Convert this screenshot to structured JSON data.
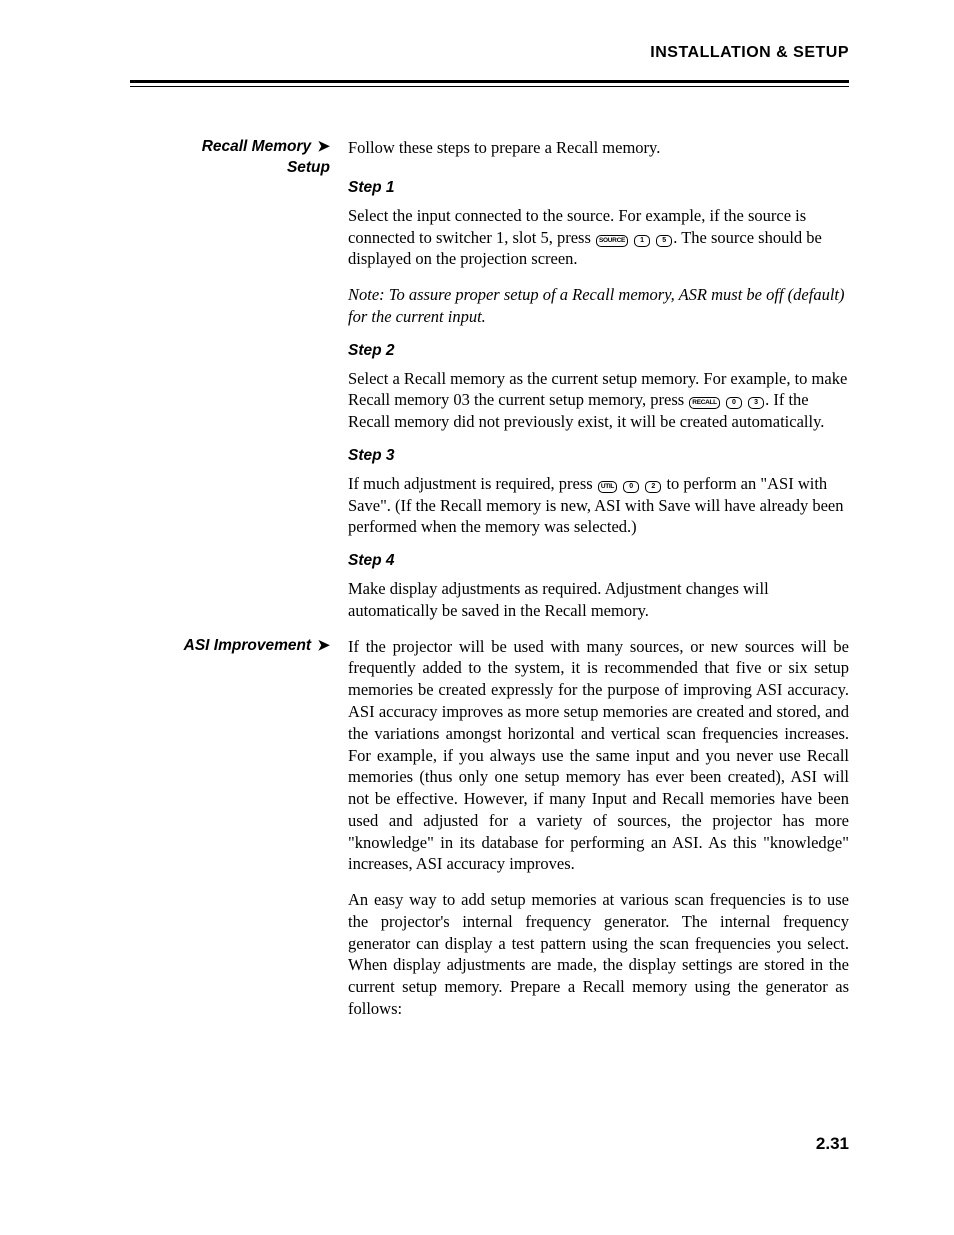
{
  "header": {
    "title": "INSTALLATION & SETUP"
  },
  "sections": [
    {
      "side_heading_lines": [
        "Recall Memory",
        "Setup"
      ],
      "intro": "Follow these steps to prepare a Recall memory.",
      "steps": [
        {
          "title": "Step 1",
          "text_pre": "Select the input connected to the source. For example, if the source is connected to switcher 1, slot 5, press ",
          "keys": [
            "SOURCE",
            "1",
            "5"
          ],
          "text_post": ". The source should be displayed on the projection screen.",
          "note": "Note: To assure proper setup of a Recall memory, ASR must be off (default) for the current input."
        },
        {
          "title": "Step 2",
          "text_pre": "Select a Recall memory as the current setup memory. For example, to make Recall memory 03 the current setup memory, press ",
          "keys": [
            "RECALL",
            "0",
            "3"
          ],
          "text_post": ". If the Recall memory did not previously exist, it will be created automatically."
        },
        {
          "title": "Step 3",
          "text_pre": "If much adjustment is required, press ",
          "keys": [
            "UTIL",
            "0",
            "2"
          ],
          "text_post": " to perform an \"ASI with Save\". (If the Recall memory is new, ASI with Save will have already been performed when the memory was selected.)"
        },
        {
          "title": "Step 4",
          "text_full": "Make display adjustments as required. Adjustment changes will automatically be saved in the Recall memory."
        }
      ]
    },
    {
      "side_heading_lines": [
        "ASI Improvement"
      ],
      "paragraphs": [
        "If the projector will be used with many sources, or new sources will be frequently added to the system, it is recommended that five or six setup memories be created expressly for the purpose of improving ASI accuracy. ASI accuracy improves as more setup memories are created and stored, and the variations amongst horizontal and vertical scan frequencies increases. For example, if you always use the same input and you never use Recall memories (thus only one setup memory has ever been created), ASI will not be effective. However, if many Input and Recall memories have been used and adjusted for a variety of sources, the projector has more \"knowledge\" in its database for performing an ASI. As this \"knowledge\" increases, ASI accuracy improves.",
        "An easy way to add setup memories at various scan frequencies is to use the projector's internal frequency generator. The internal frequency generator can display a test pattern using the scan frequencies you select. When display adjustments are made, the display settings are stored in the current setup memory. Prepare a Recall memory using the generator as follows:"
      ]
    }
  ],
  "page_number": "2.31"
}
